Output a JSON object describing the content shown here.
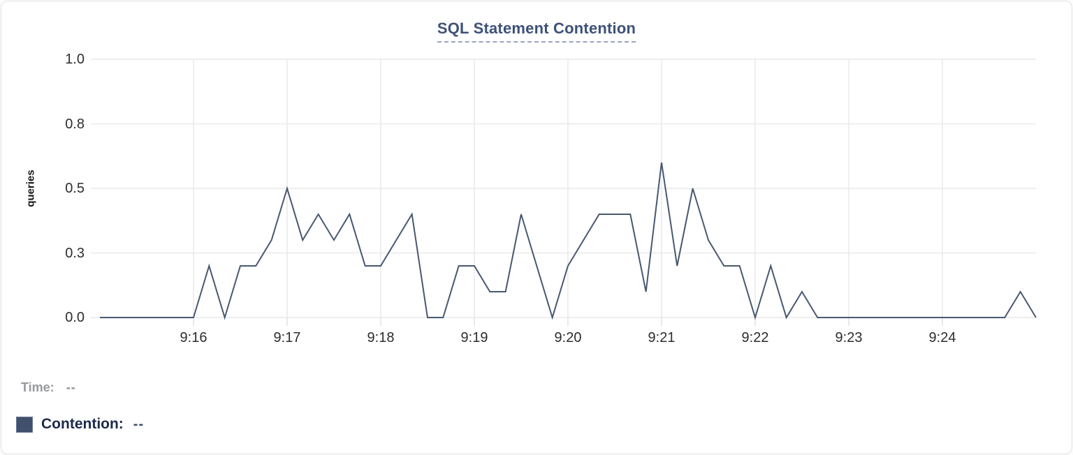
{
  "chart_data": {
    "type": "line",
    "title": "SQL Statement Contention",
    "ylabel": "queries",
    "xlabel": "",
    "ylim": [
      0,
      1
    ],
    "grid": true,
    "y_ticks": [
      {
        "value": 0.0,
        "label": "0.0"
      },
      {
        "value": 0.25,
        "label": "0.3"
      },
      {
        "value": 0.5,
        "label": "0.5"
      },
      {
        "value": 0.75,
        "label": "0.8"
      },
      {
        "value": 1.0,
        "label": "1.0"
      }
    ],
    "x_ticks": [
      "9:16",
      "9:17",
      "9:18",
      "9:19",
      "9:20",
      "9:21",
      "9:22",
      "9:23",
      "9:24"
    ],
    "x_range": [
      "9:15:00",
      "9:25:00"
    ],
    "interval_seconds": 10,
    "series": [
      {
        "name": "Contention",
        "color": "#475871",
        "unit": "queries",
        "times": [
          "9:15:00",
          "9:15:10",
          "9:15:20",
          "9:15:30",
          "9:15:40",
          "9:15:50",
          "9:16:00",
          "9:16:10",
          "9:16:20",
          "9:16:30",
          "9:16:40",
          "9:16:50",
          "9:17:00",
          "9:17:10",
          "9:17:20",
          "9:17:30",
          "9:17:40",
          "9:17:50",
          "9:18:00",
          "9:18:10",
          "9:18:20",
          "9:18:30",
          "9:18:40",
          "9:18:50",
          "9:19:00",
          "9:19:10",
          "9:19:20",
          "9:19:30",
          "9:19:40",
          "9:19:50",
          "9:20:00",
          "9:20:10",
          "9:20:20",
          "9:20:30",
          "9:20:40",
          "9:20:50",
          "9:21:00",
          "9:21:10",
          "9:21:20",
          "9:21:30",
          "9:21:40",
          "9:21:50",
          "9:22:00",
          "9:22:10",
          "9:22:20",
          "9:22:30",
          "9:22:40",
          "9:22:50",
          "9:23:00",
          "9:23:10",
          "9:23:20",
          "9:23:30",
          "9:23:40",
          "9:23:50",
          "9:24:00",
          "9:24:10",
          "9:24:20",
          "9:24:30",
          "9:24:40",
          "9:24:50",
          "9:25:00"
        ],
        "values": [
          0,
          0,
          0,
          0,
          0,
          0,
          0,
          0.2,
          0,
          0.2,
          0.2,
          0.3,
          0.5,
          0.3,
          0.4,
          0.3,
          0.4,
          0.2,
          0.2,
          0.3,
          0.4,
          0,
          0,
          0.2,
          0.2,
          0.1,
          0.1,
          0.4,
          0.2,
          0,
          0.2,
          0.3,
          0.4,
          0.4,
          0.4,
          0.1,
          0.6,
          0.2,
          0.5,
          0.3,
          0.2,
          0.2,
          0,
          0.2,
          0,
          0.1,
          0,
          0,
          0,
          0,
          0,
          0,
          0,
          0,
          0,
          0,
          0,
          0,
          0,
          0.1,
          0
        ]
      }
    ]
  },
  "tooltip": {
    "time_label": "Time:",
    "time_value": "--",
    "series_label": "Contention:",
    "series_value": "--",
    "swatch_color": "#41506c"
  },
  "colors": {
    "title": "#3d5179",
    "title_underline": "#9aa4c2",
    "line": "#475871",
    "grid": "#e9e9e9",
    "axis_tick_ext": "#e0e0e0",
    "tick_text": "#2d2d2d",
    "card_border": "#e2e2e2"
  }
}
